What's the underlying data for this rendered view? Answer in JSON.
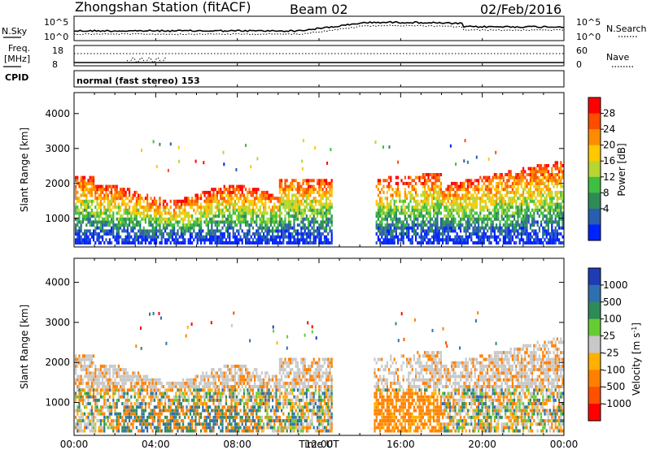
{
  "header": {
    "station": "Zhongshan Station (fitACF)",
    "beam": "Beam 02",
    "date": "02/Feb/2016"
  },
  "strip": {
    "nsky_label": "N.Sky",
    "nsky_ticks": [
      "10^5",
      "10^0"
    ],
    "nsearch_label": "N.Search",
    "nsearch_ticks": [
      "10^5",
      "10^0"
    ],
    "freq_label": "Freq.",
    "freq_unit": "[MHz]",
    "freq_ticks": [
      "18",
      "8"
    ],
    "nave_label": "Nave",
    "nave_ticks": [
      "60",
      "0"
    ],
    "cpid_label": "CPID",
    "cpid_text": "normal (fast stereo) 153"
  },
  "chart_data": [
    {
      "type": "heatmap",
      "name": "power",
      "ylabel": "Slant Range [km]",
      "yticks": [
        "4000",
        "3000",
        "2000",
        "1000"
      ],
      "ylim": [
        180,
        4600
      ],
      "xlabel": "",
      "colorbar": {
        "label": "Power [dB]",
        "ticks": [
          "28",
          "24",
          "20",
          "16",
          "12",
          "8",
          "4"
        ],
        "colors": [
          "#ff0000",
          "#ff4c00",
          "#ff8c00",
          "#ffc800",
          "#b7d631",
          "#3fbf3f",
          "#2e8b57",
          "#2a5db0",
          "#0022ff"
        ]
      }
    },
    {
      "type": "heatmap",
      "name": "velocity",
      "ylabel": "Slant Range [km]",
      "yticks": [
        "4000",
        "3000",
        "2000",
        "1000"
      ],
      "ylim": [
        180,
        4600
      ],
      "xlabel": "Time UT",
      "xticks": [
        "00:00",
        "04:00",
        "08:00",
        "12:00",
        "16:00",
        "20:00",
        "00:00"
      ],
      "colorbar": {
        "label": "Velocity [m s^-1]",
        "ticks": [
          "1000",
          "500",
          "100",
          "25",
          "-25",
          "-100",
          "-500",
          "-1000"
        ],
        "colors": [
          "#1f3cb5",
          "#2e6fb0",
          "#2e8b57",
          "#66cc33",
          "#c8c8c8",
          "#ffb000",
          "#ff8000",
          "#ff5000",
          "#ff0000"
        ]
      }
    }
  ]
}
